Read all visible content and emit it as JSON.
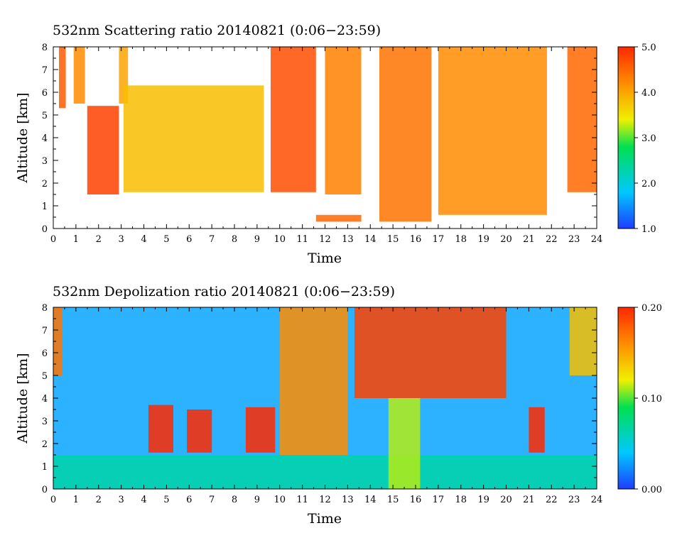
{
  "charts": [
    {
      "title": "532nm Scattering ratio  20140821 (0:06−23:59)",
      "xlabel": "Time",
      "ylabel": "Altitude [km]",
      "x_ticks": [
        "0",
        "1",
        "2",
        "3",
        "4",
        "5",
        "6",
        "7",
        "8",
        "9",
        "10",
        "11",
        "12",
        "13",
        "14",
        "15",
        "16",
        "17",
        "18",
        "19",
        "20",
        "21",
        "22",
        "23",
        "24"
      ],
      "y_ticks": [
        "0",
        "1",
        "2",
        "3",
        "4",
        "5",
        "6",
        "7",
        "8"
      ],
      "colorbar_ticks": [
        "1.0",
        "2.0",
        "3.0",
        "4.0",
        "5.0"
      ]
    },
    {
      "title": "532nm Depolization ratio  20140821 (0:06−23:59)",
      "xlabel": "Time",
      "ylabel": "Altitude [km]",
      "x_ticks": [
        "0",
        "1",
        "2",
        "3",
        "4",
        "5",
        "6",
        "7",
        "8",
        "9",
        "10",
        "11",
        "12",
        "13",
        "14",
        "15",
        "16",
        "17",
        "18",
        "19",
        "20",
        "21",
        "22",
        "23",
        "24"
      ],
      "y_ticks": [
        "0",
        "1",
        "2",
        "3",
        "4",
        "5",
        "6",
        "7",
        "8"
      ],
      "colorbar_ticks": [
        "0.00",
        "0.10",
        "0.20"
      ]
    }
  ],
  "chart_data": [
    {
      "type": "heatmap",
      "title": "532nm Scattering ratio  20140821 (0:06−23:59)",
      "xlabel": "Time",
      "ylabel": "Altitude [km]",
      "xlim": [
        0,
        24
      ],
      "ylim": [
        0,
        8
      ],
      "colorbar": {
        "min": 1.0,
        "max": 5.0,
        "ticks": [
          1.0,
          2.0,
          3.0,
          4.0,
          5.0
        ]
      },
      "colormap": [
        "#1e3cff",
        "#00c8ff",
        "#00e050",
        "#f0f000",
        "#ff8c00",
        "#ff2800"
      ],
      "features": [
        {
          "t0": 0.25,
          "t1": 0.55,
          "z0": 5.3,
          "z1": 8.0,
          "value": 4.6
        },
        {
          "t0": 0.9,
          "t1": 1.4,
          "z0": 5.5,
          "z1": 8.0,
          "value": 4.2
        },
        {
          "t0": 1.5,
          "t1": 2.9,
          "z0": 1.5,
          "z1": 5.4,
          "value": 4.8
        },
        {
          "t0": 2.9,
          "t1": 3.3,
          "z0": 5.5,
          "z1": 8.0,
          "value": 4.0
        },
        {
          "t0": 3.1,
          "t1": 9.3,
          "z0": 1.6,
          "z1": 6.3,
          "value": 3.8
        },
        {
          "t0": 9.6,
          "t1": 11.6,
          "z0": 1.6,
          "z1": 8.0,
          "value": 4.7
        },
        {
          "t0": 11.6,
          "t1": 13.6,
          "z0": 0.3,
          "z1": 0.6,
          "value": 4.5
        },
        {
          "t0": 12.0,
          "t1": 13.6,
          "z0": 1.5,
          "z1": 8.0,
          "value": 4.3
        },
        {
          "t0": 14.4,
          "t1": 16.7,
          "z0": 0.3,
          "z1": 8.0,
          "value": 4.4
        },
        {
          "t0": 17.0,
          "t1": 21.8,
          "z0": 0.6,
          "z1": 8.0,
          "value": 4.2
        },
        {
          "t0": 22.7,
          "t1": 24.0,
          "z0": 1.6,
          "z1": 8.0,
          "value": 4.5
        }
      ]
    },
    {
      "type": "heatmap",
      "title": "532nm Depolization ratio  20140821 (0:06−23:59)",
      "xlabel": "Time",
      "ylabel": "Altitude [km]",
      "xlim": [
        0,
        24
      ],
      "ylim": [
        0,
        8
      ],
      "colorbar": {
        "min": 0.0,
        "max": 0.2,
        "ticks": [
          0.0,
          0.1,
          0.2
        ]
      },
      "colormap": [
        "#1e3cff",
        "#00c8ff",
        "#00e050",
        "#f0f000",
        "#ff8c00",
        "#ff2800"
      ],
      "features": [
        {
          "t0": 0.0,
          "t1": 24.0,
          "z0": 0.0,
          "z1": 8.0,
          "value": 0.03
        },
        {
          "t0": 0.0,
          "t1": 24.0,
          "z0": 0.0,
          "z1": 1.5,
          "value": 0.06
        },
        {
          "t0": 0.0,
          "t1": 0.4,
          "z0": 5.0,
          "z1": 8.0,
          "value": 0.17
        },
        {
          "t0": 4.2,
          "t1": 5.3,
          "z0": 1.6,
          "z1": 3.7,
          "value": 0.2
        },
        {
          "t0": 5.9,
          "t1": 7.0,
          "z0": 1.6,
          "z1": 3.5,
          "value": 0.2
        },
        {
          "t0": 8.5,
          "t1": 9.8,
          "z0": 1.6,
          "z1": 3.6,
          "value": 0.2
        },
        {
          "t0": 10.0,
          "t1": 13.0,
          "z0": 1.5,
          "z1": 8.0,
          "value": 0.16
        },
        {
          "t0": 13.3,
          "t1": 20.0,
          "z0": 4.0,
          "z1": 8.0,
          "value": 0.19
        },
        {
          "t0": 14.8,
          "t1": 16.2,
          "z0": 0.0,
          "z1": 4.0,
          "value": 0.11
        },
        {
          "t0": 21.0,
          "t1": 21.7,
          "z0": 1.6,
          "z1": 3.6,
          "value": 0.2
        },
        {
          "t0": 22.8,
          "t1": 24.0,
          "z0": 5.0,
          "z1": 8.0,
          "value": 0.14
        }
      ]
    }
  ]
}
